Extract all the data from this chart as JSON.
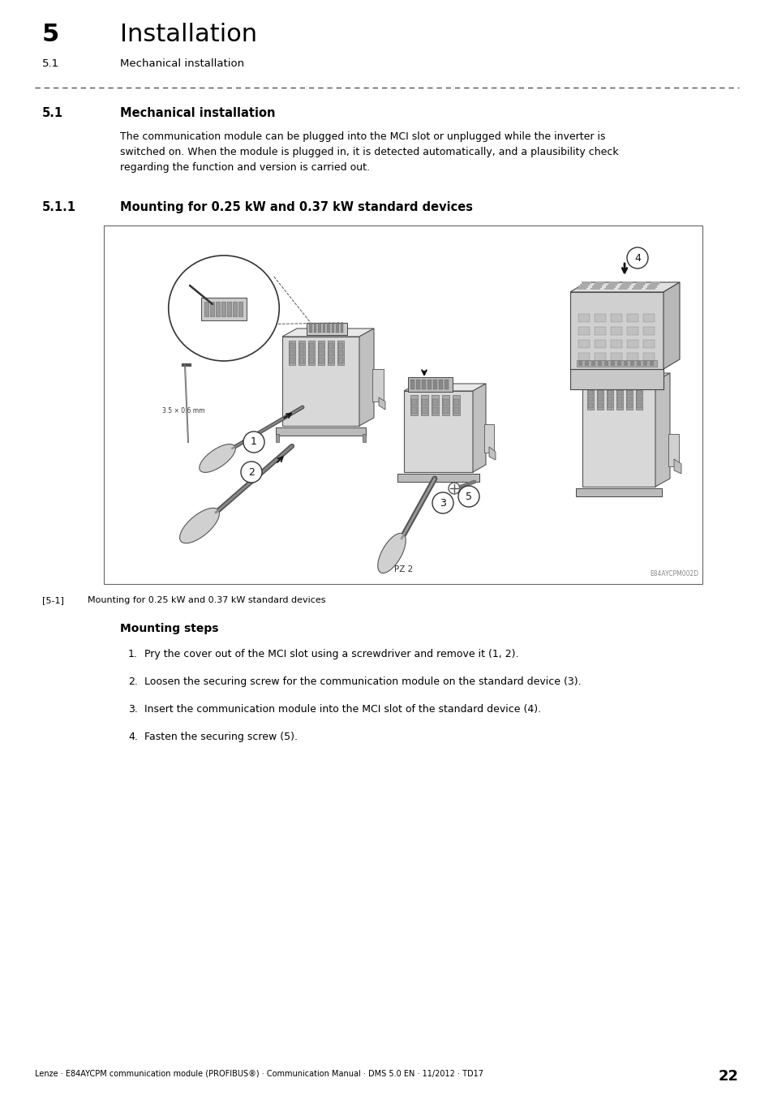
{
  "page_width": 9.54,
  "page_height": 13.5,
  "bg_color": "#ffffff",
  "header_chapter_num": "5",
  "header_chapter_title": "Installation",
  "header_section": "5.1",
  "header_section_title": "Mechanical installation",
  "section_51_num": "5.1",
  "section_51_title": "Mechanical installation",
  "body_text": "The communication module can be plugged into the MCI slot or unplugged while the inverter is\nswitched on. When the module is plugged in, it is detected automatically, and a plausibility check\nregarding the function and version is carried out.",
  "section_511_num": "5.1.1",
  "section_511_title": "Mounting for 0.25 kW and 0.37 kW standard devices",
  "figure_label": "[5-1]",
  "figure_caption": "Mounting for 0.25 kW and 0.37 kW standard devices",
  "mounting_steps_title": "Mounting steps",
  "mounting_steps": [
    "Pry the cover out of the MCI slot using a screwdriver and remove it (1, 2).",
    "Loosen the securing screw for the communication module on the standard device (3).",
    "Insert the communication module into the MCI slot of the standard device (4).",
    "Fasten the securing screw (5)."
  ],
  "footer_text": "Lenze · E84AYCPM communication module (PROFIBUS®) · Communication Manual · DMS 5.0 EN · 11/2012 · TD17",
  "footer_page": "22",
  "text_color": "#000000",
  "diagram_label": "E84AYCPM002D"
}
